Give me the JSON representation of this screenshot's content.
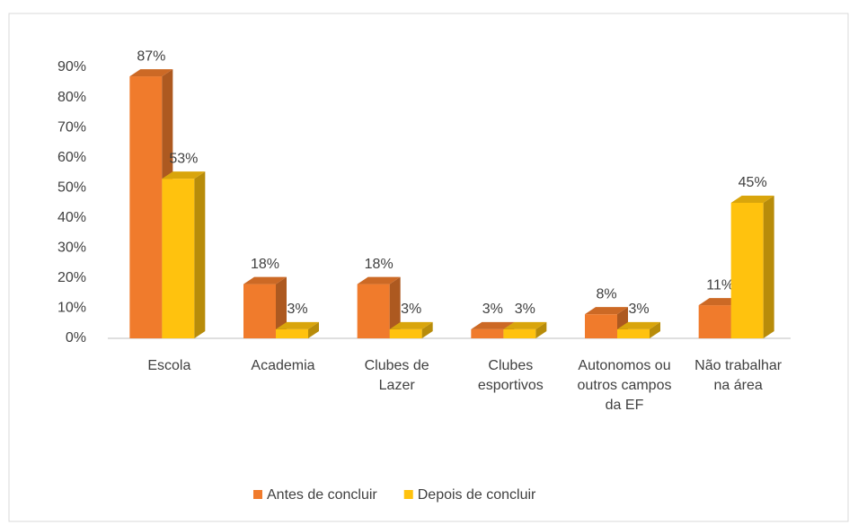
{
  "chart_data": {
    "type": "bar3d",
    "categories": [
      "Escola",
      "Academia",
      "Clubes de Lazer",
      "Clubes esportivos",
      "Autonomos ou outros campos da EF",
      "Não trabalhar na área"
    ],
    "series": [
      {
        "name": "Antes de concluir",
        "color": "#f07b2c",
        "values": [
          87,
          18,
          18,
          3,
          8,
          11
        ],
        "value_labels": [
          "87%",
          "18%",
          "18%",
          "3%",
          "8%",
          "11%"
        ]
      },
      {
        "name": "Depois de concluir",
        "color": "#ffc20e",
        "values": [
          53,
          3,
          3,
          3,
          3,
          45
        ],
        "value_labels": [
          "53%",
          "3%",
          "3%",
          "3%",
          "3%",
          "45%"
        ]
      }
    ],
    "ylim": [
      0,
      90
    ],
    "yticks": [
      {
        "value": 0,
        "label": "0%"
      },
      {
        "value": 10,
        "label": "10%"
      },
      {
        "value": 20,
        "label": "20%"
      },
      {
        "value": 30,
        "label": "30%"
      },
      {
        "value": 40,
        "label": "40%"
      },
      {
        "value": 50,
        "label": "50%"
      },
      {
        "value": 60,
        "label": "60%"
      },
      {
        "value": 70,
        "label": "70%"
      },
      {
        "value": 80,
        "label": "80%"
      },
      {
        "value": 90,
        "label": "90%"
      }
    ],
    "legend": "bottom"
  }
}
